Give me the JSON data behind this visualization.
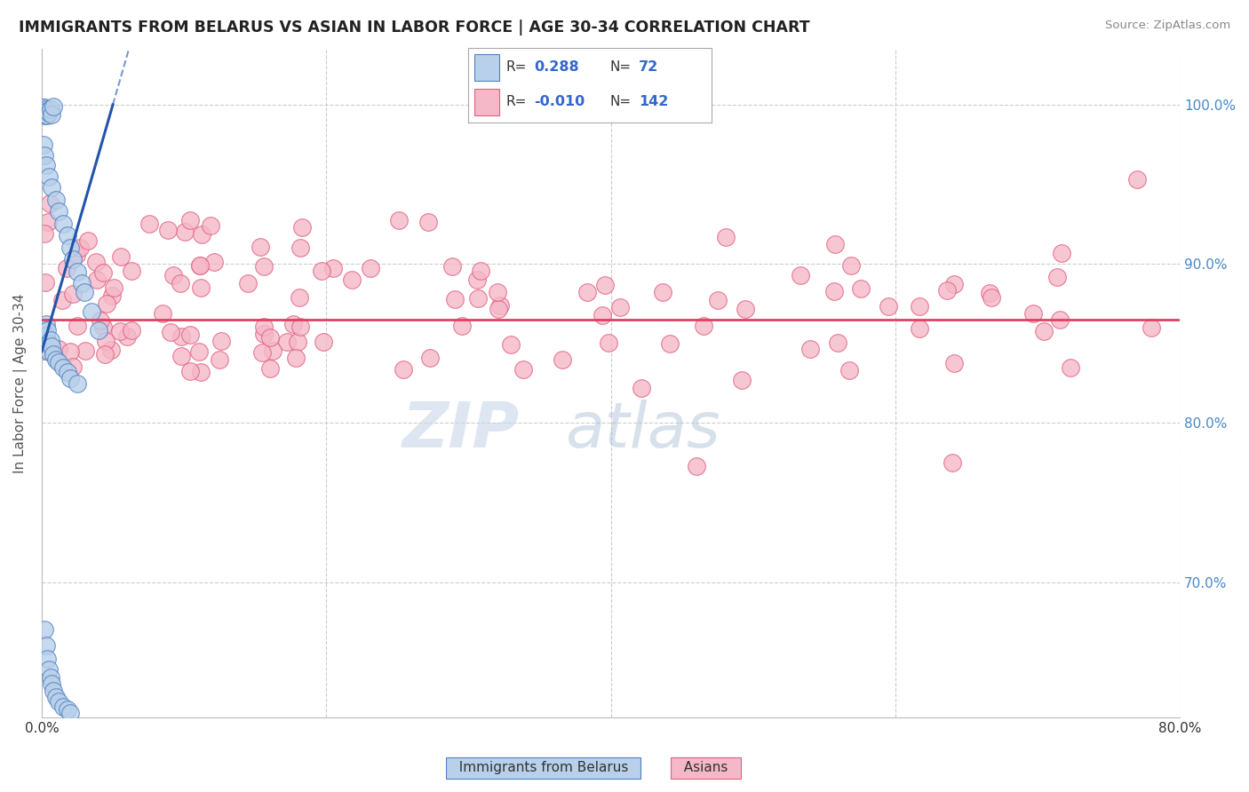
{
  "title": "IMMIGRANTS FROM BELARUS VS ASIAN IN LABOR FORCE | AGE 30-34 CORRELATION CHART",
  "source_text": "Source: ZipAtlas.com",
  "ylabel": "In Labor Force | Age 30-34",
  "xlim": [
    0.0,
    0.8
  ],
  "ylim": [
    0.615,
    1.035
  ],
  "xtick_positions": [
    0.0,
    0.2,
    0.4,
    0.6,
    0.8
  ],
  "xticklabels": [
    "0.0%",
    "",
    "",
    "",
    "80.0%"
  ],
  "ytick_positions": [
    0.7,
    0.8,
    0.9,
    1.0
  ],
  "yticklabels": [
    "70.0%",
    "80.0%",
    "90.0%",
    "100.0%"
  ],
  "legend_r_blue": "0.288",
  "legend_n_blue": "72",
  "legend_r_pink": "-0.010",
  "legend_n_pink": "142",
  "blue_fill": "#b8d0ea",
  "pink_fill": "#f5b8c8",
  "blue_edge": "#5080c0",
  "pink_edge": "#e06080",
  "blue_line": "#2255aa",
  "pink_line": "#e04060",
  "grid_color": "#cccccc",
  "ytick_color": "#4488cc",
  "watermark_zip": "ZIP",
  "watermark_atlas": "atlas"
}
